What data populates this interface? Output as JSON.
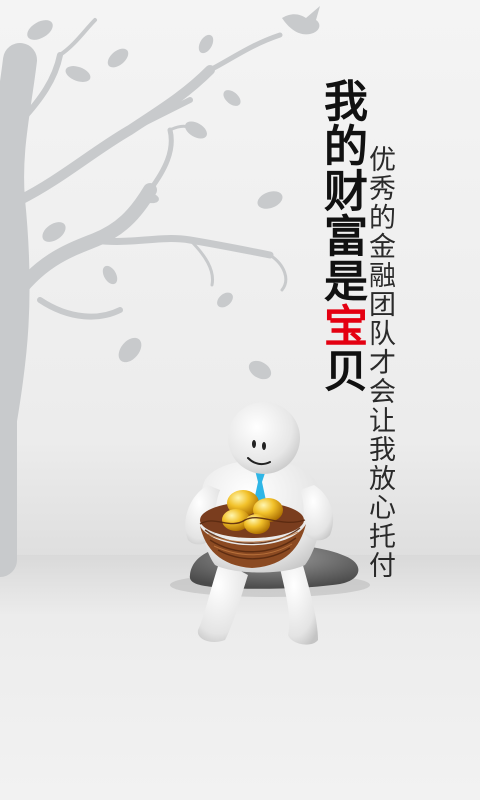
{
  "splash": {
    "headline_main": "我的财富是",
    "headline_highlight": "宝",
    "headline_end": "贝",
    "slogan": "优秀的金融团队才会让我放心托付"
  },
  "colors": {
    "accent": "#e40011",
    "headline": "#111111",
    "slogan": "#2a2a2a",
    "tree": "#c8cacc",
    "gold": "#e0a10a"
  },
  "icons": {
    "tree": "tree-silhouette-icon",
    "bird": "bird-icon",
    "mascot": "mascot-figure-icon",
    "nest": "nest-with-golden-eggs-icon"
  }
}
